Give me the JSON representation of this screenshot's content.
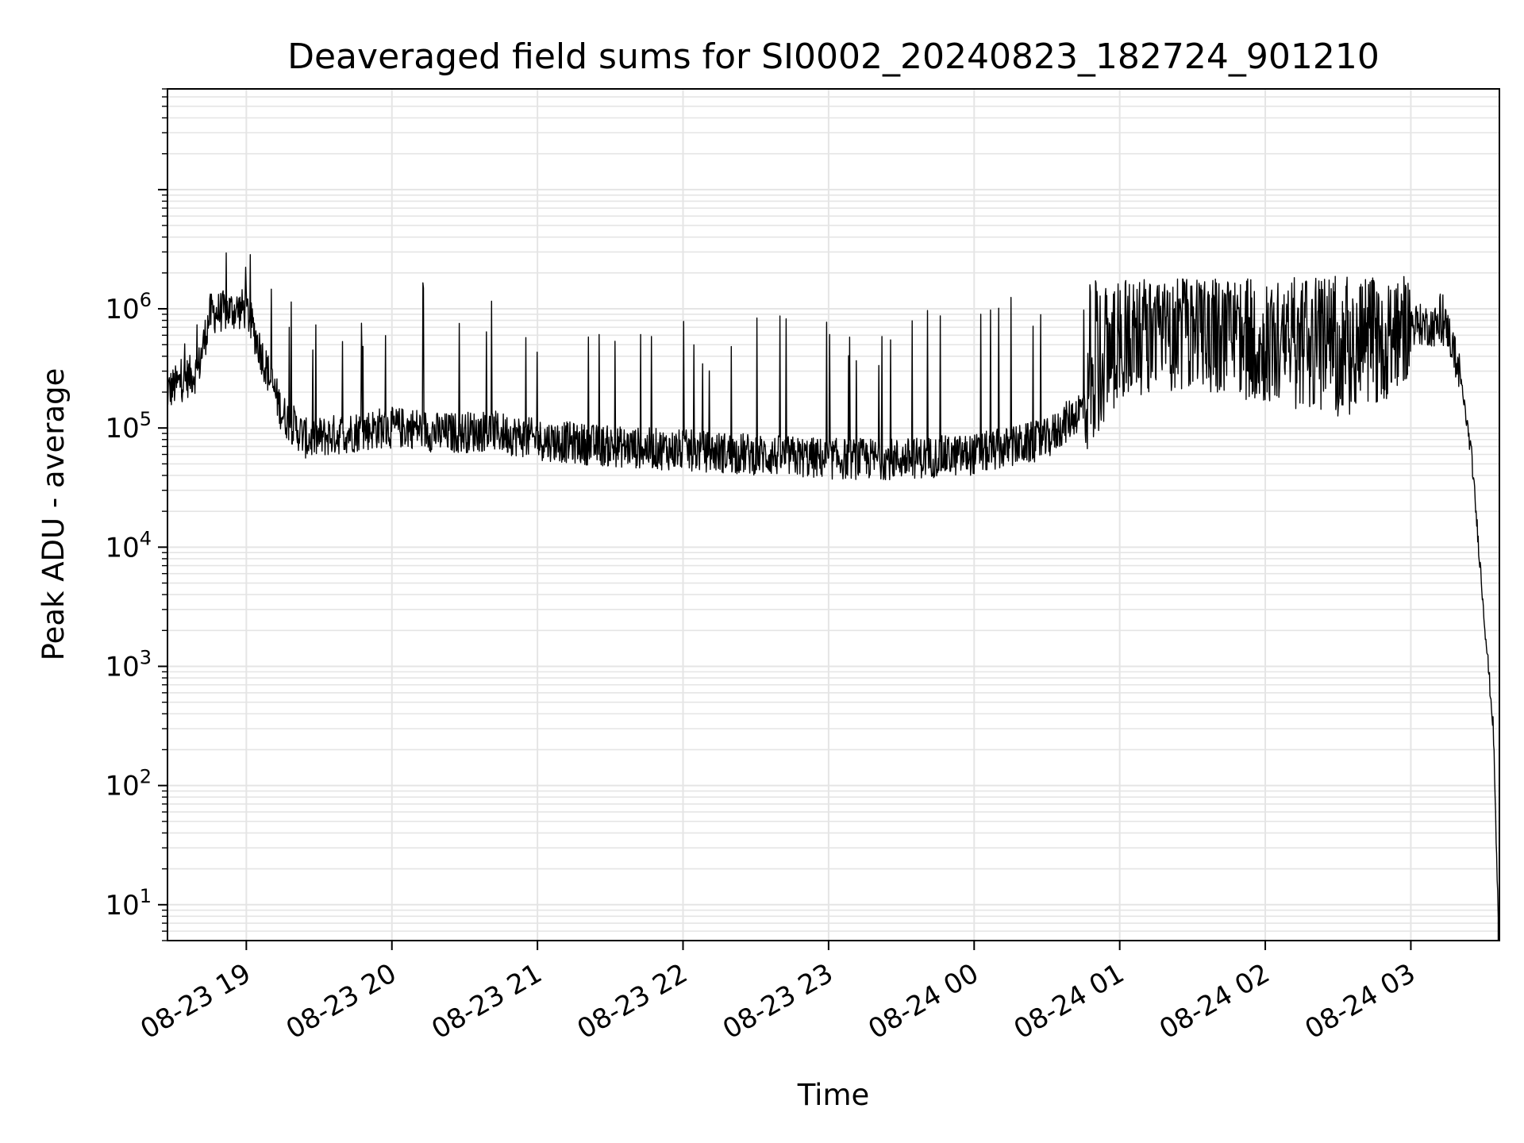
{
  "chart_data": {
    "type": "line",
    "title": "Deaveraged field sums for SI0002_20240823_182724_901210",
    "xlabel": "Time",
    "ylabel": "Peak ADU - average",
    "yscale": "log",
    "ylim": [
      5,
      70000000
    ],
    "xlim": [
      "08-23 18:27:30",
      "08-24 03:36:30"
    ],
    "grid": true,
    "line_color": "#000000",
    "grid_color": "#e5e5e5",
    "x_ticks": [
      {
        "label": "08-23 19",
        "time": "08-23 19:00"
      },
      {
        "label": "08-23 20",
        "time": "08-23 20:00"
      },
      {
        "label": "08-23 21",
        "time": "08-23 21:00"
      },
      {
        "label": "08-23 22",
        "time": "08-23 22:00"
      },
      {
        "label": "08-23 23",
        "time": "08-23 23:00"
      },
      {
        "label": "08-24 00",
        "time": "08-24 00:00"
      },
      {
        "label": "08-24 01",
        "time": "08-24 01:00"
      },
      {
        "label": "08-24 02",
        "time": "08-24 02:00"
      },
      {
        "label": "08-24 03",
        "time": "08-24 03:00"
      }
    ],
    "y_ticks": [
      {
        "base": "10",
        "exp": "1",
        "value": 10
      },
      {
        "base": "10",
        "exp": "2",
        "value": 100
      },
      {
        "base": "10",
        "exp": "3",
        "value": 1000
      },
      {
        "base": "10",
        "exp": "4",
        "value": 10000
      },
      {
        "base": "10",
        "exp": "5",
        "value": 100000
      },
      {
        "base": "10",
        "exp": "6",
        "value": 1000000
      }
    ],
    "series": [
      {
        "baseline": [
          [
            "08-23 18:27",
            200000
          ],
          [
            "08-23 18:35",
            260000
          ],
          [
            "08-23 18:40",
            300000
          ],
          [
            "08-23 18:45",
            900000
          ],
          [
            "08-23 18:50",
            950000
          ],
          [
            "08-23 19:00",
            1000000
          ],
          [
            "08-23 19:05",
            500000
          ],
          [
            "08-23 19:10",
            250000
          ],
          [
            "08-23 19:15",
            130000
          ],
          [
            "08-23 19:25",
            80000
          ],
          [
            "08-23 19:40",
            90000
          ],
          [
            "08-23 19:55",
            100000
          ],
          [
            "08-23 20:10",
            100000
          ],
          [
            "08-23 20:20",
            90000
          ],
          [
            "08-23 20:40",
            95000
          ],
          [
            "08-23 21:00",
            80000
          ],
          [
            "08-23 21:30",
            70000
          ],
          [
            "08-23 22:00",
            65000
          ],
          [
            "08-23 22:30",
            60000
          ],
          [
            "08-23 23:00",
            55000
          ],
          [
            "08-23 23:30",
            55000
          ],
          [
            "08-24 00:00",
            60000
          ],
          [
            "08-24 00:30",
            80000
          ],
          [
            "08-24 00:45",
            150000
          ],
          [
            "08-24 01:00",
            500000
          ],
          [
            "08-24 01:30",
            600000
          ],
          [
            "08-24 02:00",
            450000
          ],
          [
            "08-24 02:30",
            350000
          ],
          [
            "08-24 02:45",
            400000
          ],
          [
            "08-24 03:00",
            750000
          ],
          [
            "08-24 03:15",
            700000
          ],
          [
            "08-24 03:20",
            300000
          ],
          [
            "08-24 03:25",
            60000
          ],
          [
            "08-24 03:30",
            3000
          ],
          [
            "08-24 03:34",
            300
          ],
          [
            "08-24 03:36",
            8
          ]
        ],
        "peak_envelope": [
          [
            "08-23 18:30",
            300000
          ],
          [
            "08-23 18:47",
            3200000
          ],
          [
            "08-23 19:00",
            3800000
          ],
          [
            "08-23 19:30",
            700000
          ],
          [
            "08-23 20:00",
            1800000
          ],
          [
            "08-23 20:30",
            1800000
          ],
          [
            "08-23 21:00",
            1200000
          ],
          [
            "08-23 21:30",
            800000
          ],
          [
            "08-23 22:00",
            800000
          ],
          [
            "08-23 22:30",
            1100000
          ],
          [
            "08-23 23:00",
            800000
          ],
          [
            "08-23 23:30",
            900000
          ],
          [
            "08-24 00:00",
            1500000
          ],
          [
            "08-24 00:30",
            1700000
          ],
          [
            "08-24 01:00",
            1800000
          ],
          [
            "08-24 02:00",
            1800000
          ],
          [
            "08-24 02:40",
            1900000
          ],
          [
            "08-24 03:15",
            1300000
          ]
        ]
      }
    ]
  }
}
